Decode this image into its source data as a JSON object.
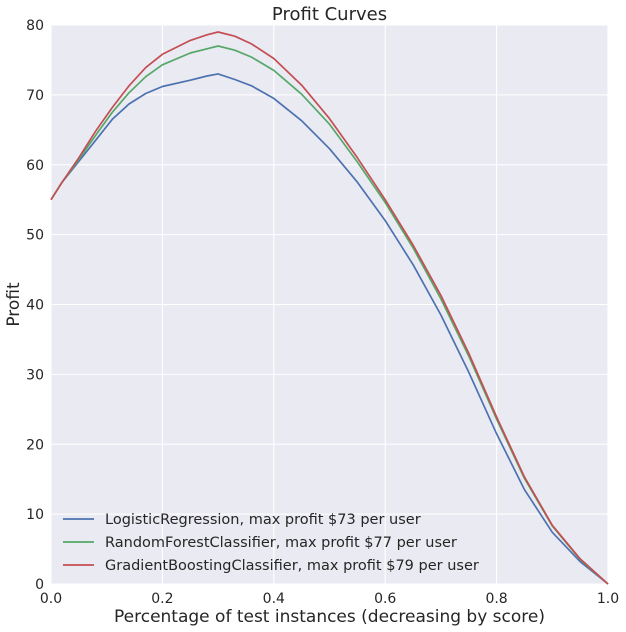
{
  "chart_data": {
    "type": "line",
    "title": "Profit Curves",
    "xlabel": "Percentage of test instances (decreasing by score)",
    "ylabel": "Profit",
    "xlim": [
      0,
      1
    ],
    "ylim": [
      0,
      80
    ],
    "x_ticks": [
      "0.0",
      "0.2",
      "0.4",
      "0.6",
      "0.8",
      "1.0"
    ],
    "y_ticks": [
      "0",
      "10",
      "20",
      "30",
      "40",
      "50",
      "60",
      "70",
      "80"
    ],
    "grid": true,
    "legend_position": "lower-left",
    "background_color": "#eaeaf2",
    "series": [
      {
        "name": "LogisticRegression, max profit $73 per user",
        "color": "#4c72b0",
        "points": [
          [
            0,
            55
          ],
          [
            0.02,
            57.5
          ],
          [
            0.05,
            60.5
          ],
          [
            0.08,
            63.5
          ],
          [
            0.11,
            66.5
          ],
          [
            0.14,
            68.7
          ],
          [
            0.17,
            70.2
          ],
          [
            0.2,
            71.2
          ],
          [
            0.25,
            72.1
          ],
          [
            0.28,
            72.7
          ],
          [
            0.3,
            73
          ],
          [
            0.33,
            72.2
          ],
          [
            0.36,
            71.3
          ],
          [
            0.4,
            69.5
          ],
          [
            0.45,
            66.3
          ],
          [
            0.5,
            62.3
          ],
          [
            0.55,
            57.5
          ],
          [
            0.6,
            52
          ],
          [
            0.65,
            45.7
          ],
          [
            0.7,
            38.5
          ],
          [
            0.75,
            30.3
          ],
          [
            0.8,
            21.5
          ],
          [
            0.85,
            13.5
          ],
          [
            0.9,
            7.4
          ],
          [
            0.95,
            3.2
          ],
          [
            1,
            0
          ]
        ]
      },
      {
        "name": "RandomForestClassifier, max profit $77 per user",
        "color": "#55a868",
        "points": [
          [
            0,
            55
          ],
          [
            0.02,
            57.5
          ],
          [
            0.05,
            60.8
          ],
          [
            0.08,
            64.2
          ],
          [
            0.11,
            67.5
          ],
          [
            0.14,
            70.3
          ],
          [
            0.17,
            72.6
          ],
          [
            0.2,
            74.3
          ],
          [
            0.25,
            76
          ],
          [
            0.28,
            76.6
          ],
          [
            0.3,
            77
          ],
          [
            0.33,
            76.4
          ],
          [
            0.36,
            75.4
          ],
          [
            0.4,
            73.5
          ],
          [
            0.45,
            70.1
          ],
          [
            0.5,
            65.8
          ],
          [
            0.55,
            60.4
          ],
          [
            0.6,
            54.6
          ],
          [
            0.65,
            48.1
          ],
          [
            0.7,
            40.8
          ],
          [
            0.75,
            32.6
          ],
          [
            0.8,
            23.6
          ],
          [
            0.85,
            15.1
          ],
          [
            0.9,
            8.3
          ],
          [
            0.95,
            3.5
          ],
          [
            1,
            0
          ]
        ]
      },
      {
        "name": "GradientBoostingClassifier, max profit $79 per user",
        "color": "#c44e52",
        "points": [
          [
            0,
            55
          ],
          [
            0.02,
            57.5
          ],
          [
            0.05,
            61
          ],
          [
            0.08,
            64.8
          ],
          [
            0.11,
            68.2
          ],
          [
            0.14,
            71.3
          ],
          [
            0.17,
            73.9
          ],
          [
            0.2,
            75.8
          ],
          [
            0.25,
            77.8
          ],
          [
            0.28,
            78.6
          ],
          [
            0.3,
            79
          ],
          [
            0.33,
            78.4
          ],
          [
            0.36,
            77.3
          ],
          [
            0.4,
            75.2
          ],
          [
            0.45,
            71.4
          ],
          [
            0.5,
            66.6
          ],
          [
            0.55,
            61
          ],
          [
            0.6,
            55
          ],
          [
            0.65,
            48.5
          ],
          [
            0.7,
            41.3
          ],
          [
            0.75,
            33
          ],
          [
            0.8,
            23.9
          ],
          [
            0.85,
            15.3
          ],
          [
            0.9,
            8.4
          ],
          [
            0.95,
            3.6
          ],
          [
            1,
            0
          ]
        ]
      }
    ]
  }
}
